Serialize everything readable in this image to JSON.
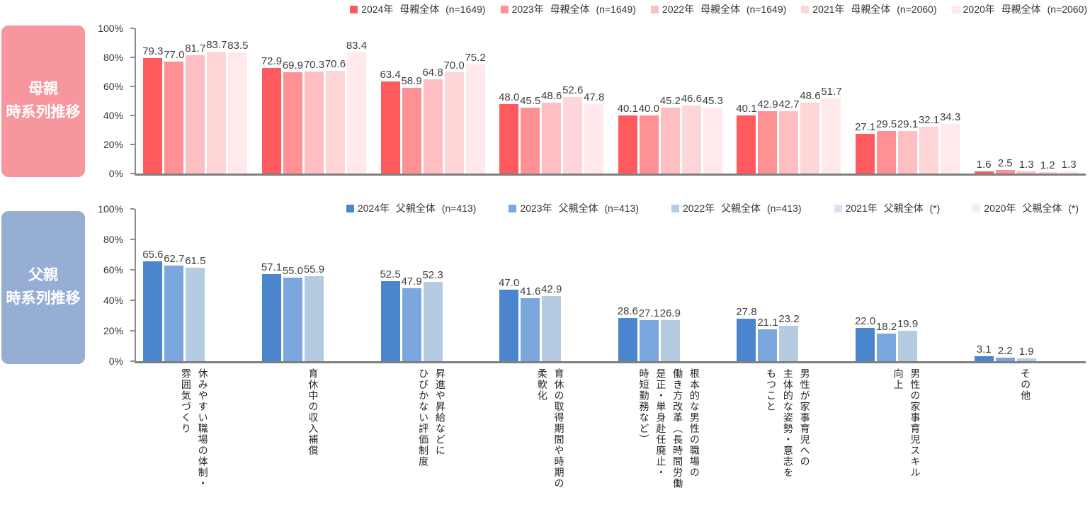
{
  "chart_data": [
    {
      "type": "bar",
      "panel_label": "母親\n時系列推移",
      "panel_color": "#f7969c",
      "ylim": [
        0,
        100
      ],
      "y_tick_labels": [
        "0%",
        "20%",
        "40%",
        "60%",
        "80%",
        "100%"
      ],
      "grid": false,
      "legend_position": "top",
      "value_labels": true,
      "categories": [
        "休みやすい職場の体制・\n雰囲気づくり",
        "育休中の収入補償",
        "昇進や昇給などに\nひびかない評価制度",
        "育休の取得期間や時期の\n柔軟化",
        "根本的な男性の職場の\n働き方改革（長時間労働\n是正・単身赴任廃止・\n時短勤務など）",
        "男性が家事育児への\n主体的な姿勢・意志を\nもつこと",
        "男性の家事育児スキル\n向上",
        "その他"
      ],
      "series": [
        {
          "name": "2024年 母親全体 (n=1649)",
          "color": "#ff5b5e",
          "values": [
            79.3,
            72.9,
            63.4,
            48.0,
            40.1,
            40.1,
            27.1,
            1.6
          ]
        },
        {
          "name": "2023年 母親全体 (n=1649)",
          "color": "#ff9194",
          "values": [
            77.0,
            69.9,
            58.9,
            45.5,
            40.0,
            42.9,
            29.5,
            2.5
          ]
        },
        {
          "name": "2022年 母親全体 (n=1649)",
          "color": "#ffbec1",
          "values": [
            81.7,
            70.3,
            64.8,
            48.6,
            45.2,
            42.7,
            29.1,
            1.3
          ]
        },
        {
          "name": "2021年 母親全体 (n=2060)",
          "color": "#ffd6d8",
          "values": [
            83.7,
            70.6,
            70.0,
            52.6,
            46.6,
            48.6,
            32.1,
            1.2
          ]
        },
        {
          "name": "2020年 母親全体 (n=2060)",
          "color": "#ffe9eb",
          "values": [
            83.5,
            83.4,
            75.2,
            47.8,
            45.3,
            51.7,
            34.3,
            1.3
          ]
        }
      ]
    },
    {
      "type": "bar",
      "panel_label": "父親\n時系列推移",
      "panel_color": "#96add4",
      "ylim": [
        0,
        100
      ],
      "y_tick_labels": [
        "0%",
        "20%",
        "40%",
        "60%",
        "80%",
        "100%"
      ],
      "grid": false,
      "legend_position": "top",
      "value_labels": true,
      "categories": [
        "休みやすい職場の体制・\n雰囲気づくり",
        "育休中の収入補償",
        "昇進や昇給などに\nひびかない評価制度",
        "育休の取得期間や時期の\n柔軟化",
        "根本的な男性の職場の\n働き方改革（長時間労働\n是正・単身赴任廃止・\n時短勤務など）",
        "男性が家事育児への\n主体的な姿勢・意志を\nもつこと",
        "男性の家事育児スキル\n向上",
        "その他"
      ],
      "series": [
        {
          "name": "2024年 父親全体 (n=413)",
          "color": "#4a85ce",
          "values": [
            65.6,
            57.1,
            52.5,
            47.0,
            28.6,
            27.8,
            22.0,
            3.1
          ]
        },
        {
          "name": "2023年 父親全体 (n=413)",
          "color": "#7ca7de",
          "values": [
            62.7,
            55.0,
            47.9,
            41.6,
            27.1,
            21.1,
            18.2,
            2.2
          ]
        },
        {
          "name": "2022年 父親全体 (n=413)",
          "color": "#b5cbe2",
          "values": [
            61.5,
            55.9,
            52.3,
            42.9,
            26.9,
            23.2,
            19.9,
            1.9
          ]
        },
        {
          "name": "2021年 父親全体 (*)",
          "color": "#d9e4f2",
          "values": null
        },
        {
          "name": "2020年 父親全体 (*)",
          "color": "#ebf1f9",
          "values": null
        }
      ]
    }
  ]
}
